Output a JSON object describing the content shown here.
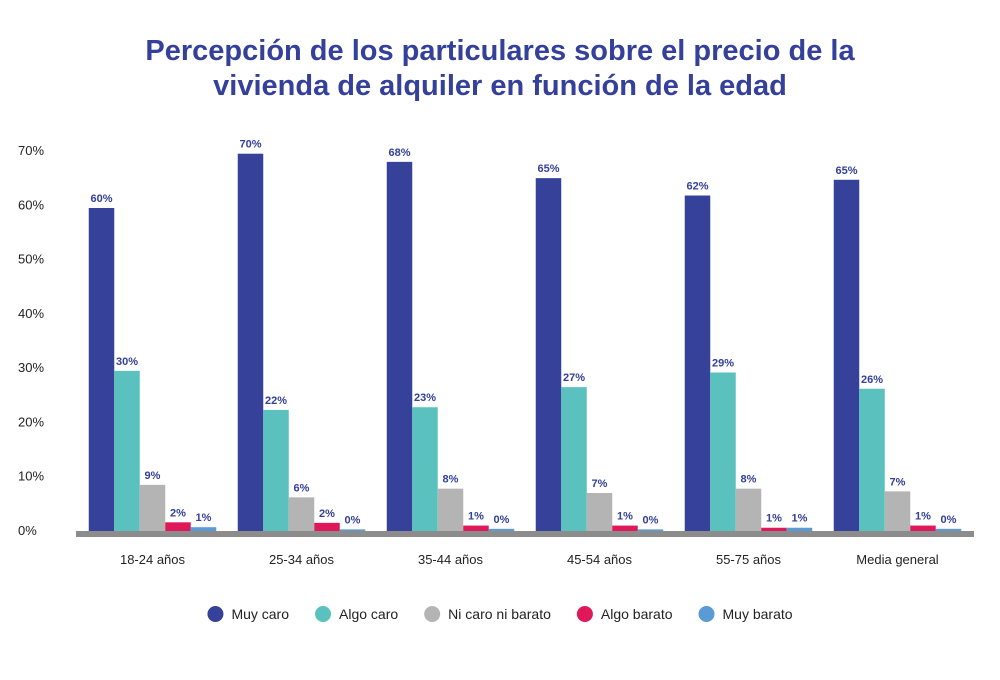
{
  "chart_data": {
    "type": "bar",
    "title_lines": [
      "Percepción de los particulares sobre el precio de la",
      "vivienda de alquiler en función de la edad"
    ],
    "categories": [
      "18-24 años",
      "25-34 años",
      "35-44 años",
      "45-54 años",
      "55-75 años",
      "Media general"
    ],
    "ylim": [
      0,
      70
    ],
    "yticks": [
      0,
      10,
      20,
      30,
      40,
      50,
      60,
      70
    ],
    "ytick_labels": [
      "0%",
      "10%",
      "20%",
      "30%",
      "40%",
      "50%",
      "60%",
      "70%"
    ],
    "series": [
      {
        "name": "Muy caro",
        "color": "#36429a",
        "values": [
          59.5,
          69.5,
          68,
          65,
          61.8,
          64.7
        ],
        "labels": [
          "60%",
          "70%",
          "68%",
          "65%",
          "62%",
          "65%"
        ]
      },
      {
        "name": "Algo caro",
        "color": "#5bc1bf",
        "values": [
          29.5,
          22.3,
          22.8,
          26.5,
          29.2,
          26.2
        ],
        "labels": [
          "30%",
          "22%",
          "23%",
          "27%",
          "29%",
          "26%"
        ]
      },
      {
        "name": "Ni caro ni barato",
        "color": "#b4b4b4",
        "values": [
          8.5,
          6.2,
          7.8,
          7,
          7.8,
          7.3
        ],
        "labels": [
          "9%",
          "6%",
          "8%",
          "7%",
          "8%",
          "7%"
        ]
      },
      {
        "name": "Algo barato",
        "color": "#e0185a",
        "values": [
          1.6,
          1.5,
          1,
          1,
          0.6,
          1
        ],
        "labels": [
          "2%",
          "2%",
          "1%",
          "1%",
          "1%",
          "1%"
        ]
      },
      {
        "name": "Muy barato",
        "color": "#5b9bd5",
        "values": [
          0.7,
          0.3,
          0.4,
          0.3,
          0.6,
          0.4
        ],
        "labels": [
          "1%",
          "0%",
          "0%",
          "0%",
          "1%",
          "0%"
        ]
      }
    ],
    "legend_position": "bottom",
    "grid": false
  }
}
